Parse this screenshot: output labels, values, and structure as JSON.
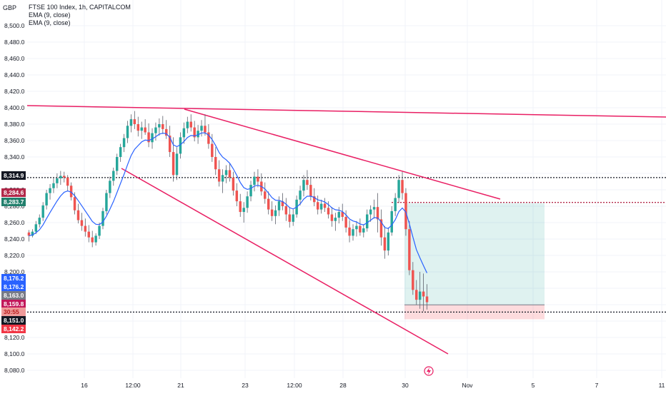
{
  "currency": "GBP",
  "legend": {
    "title": "FTSE 100 Index, 1h, CAPITALCOM",
    "studies": [
      "EMA (9, close)",
      "EMA (9, close)"
    ]
  },
  "colors": {
    "up": "#26a69a",
    "down": "#ef5350",
    "wick": "#5d606b",
    "ema": "#2962ff",
    "trendline": "#e91e63",
    "target_zone": "#26a69a",
    "stop_zone": "#f23645",
    "grid": "#f0f3fa"
  },
  "icons": {
    "flash": "lightning-icon"
  },
  "chart_data": {
    "type": "candlestick",
    "symbol": "FTSE 100 Index",
    "interval": "1h",
    "source": "CAPITALCOM",
    "y_axis": {
      "position": "left",
      "ylim": [
        8070,
        8510
      ],
      "ticks": [
        8500,
        8480,
        8460,
        8440,
        8420,
        8400,
        8380,
        8360,
        8340,
        8320,
        8300,
        8280,
        8260,
        8240,
        8220,
        8200,
        8180,
        8160,
        8140,
        8120,
        8100,
        8080
      ],
      "tick_labels": [
        "8,500.0",
        "8,480.0",
        "8,460.0",
        "8,440.0",
        "8,420.0",
        "8,400.0",
        "8,380.0",
        "8,360.0",
        "8,340.0",
        "8,320.0",
        "8,300.0",
        "8,280.0",
        "8,260.0",
        "8,240.0",
        "8,220.0",
        "8,200.0",
        "8,180.0",
        "8,160.0",
        "8,140.0",
        "8,120.0",
        "8,100.0",
        "8,080.0"
      ]
    },
    "x_axis": {
      "tick_labels": [
        "16",
        "12:00",
        "21",
        "23",
        "12:00",
        "28",
        "30",
        "Nov",
        "5",
        "7",
        "11"
      ]
    },
    "price_tags": [
      {
        "value": 8314.9,
        "label": "8,314.9",
        "color": "#131722"
      },
      {
        "value": 8284.6,
        "label": "8,284.6",
        "color": "#b2294a"
      },
      {
        "value": 8283.7,
        "label": "8,283.7",
        "color": "#22806d"
      },
      {
        "value": 8176.2,
        "label": "8,176.2",
        "color": "#2962ff"
      },
      {
        "value": 8176.2,
        "label": "8,176.2",
        "color": "#2962ff"
      },
      {
        "value": 8163.0,
        "label": "8,163.0",
        "color": "#787b86"
      },
      {
        "value": 8159.8,
        "label": "8,159.8",
        "color": "#c2185b"
      },
      {
        "value": 8155.5,
        "label": "30:55",
        "color": "#ef9a9a",
        "text_color": "#b71c1c"
      },
      {
        "value": 8151.0,
        "label": "8,151.0",
        "color": "#131722"
      },
      {
        "value": 8142.2,
        "label": "8,142.2",
        "color": "#f23645"
      }
    ],
    "horizontal_lines": [
      {
        "value": 8314.9,
        "style": "dotted",
        "color": "#131722"
      },
      {
        "value": 8151.0,
        "style": "dotted",
        "color": "#131722"
      },
      {
        "value": 8284.6,
        "style": "dotted",
        "color": "#b2294a"
      }
    ],
    "position_tool": {
      "entry": 8159.8,
      "target": 8283.7,
      "stop": 8142.2
    },
    "trendlines": [
      {
        "from": {
          "bar": 0,
          "price": 8399
        },
        "to": {
          "bar": 450,
          "price": 8387
        }
      },
      {
        "from": {
          "bar": 115,
          "price": 8398
        },
        "to": {
          "bar": 333,
          "price": 8280
        }
      },
      {
        "from": {
          "bar": 69,
          "price": 8317
        },
        "to": {
          "bar": 299,
          "price": 8104
        }
      }
    ],
    "series": [
      {
        "type": "ohlc",
        "bars": [
          [
            8248,
            8251,
            8237,
            8244
          ],
          [
            8244,
            8252,
            8242,
            8249
          ],
          [
            8249,
            8262,
            8246,
            8258
          ],
          [
            8258,
            8270,
            8254,
            8266
          ],
          [
            8266,
            8285,
            8262,
            8281
          ],
          [
            8281,
            8300,
            8276,
            8296
          ],
          [
            8296,
            8307,
            8288,
            8302
          ],
          [
            8302,
            8314,
            8296,
            8308
          ],
          [
            8308,
            8320,
            8302,
            8314
          ],
          [
            8314,
            8323,
            8306,
            8317
          ],
          [
            8317,
            8322,
            8309,
            8315
          ],
          [
            8315,
            8318,
            8298,
            8305
          ],
          [
            8305,
            8309,
            8287,
            8291
          ],
          [
            8291,
            8297,
            8270,
            8275
          ],
          [
            8275,
            8283,
            8259,
            8263
          ],
          [
            8263,
            8272,
            8250,
            8256
          ],
          [
            8256,
            8265,
            8243,
            8249
          ],
          [
            8249,
            8257,
            8236,
            8242
          ],
          [
            8242,
            8250,
            8230,
            8236
          ],
          [
            8236,
            8247,
            8232,
            8244
          ],
          [
            8244,
            8260,
            8240,
            8256
          ],
          [
            8256,
            8278,
            8252,
            8274
          ],
          [
            8274,
            8300,
            8270,
            8296
          ],
          [
            8296,
            8316,
            8290,
            8311
          ],
          [
            8311,
            8327,
            8305,
            8323
          ],
          [
            8323,
            8344,
            8318,
            8340
          ],
          [
            8340,
            8356,
            8334,
            8352
          ],
          [
            8352,
            8368,
            8346,
            8363
          ],
          [
            8363,
            8384,
            8357,
            8378
          ],
          [
            8378,
            8392,
            8370,
            8386
          ],
          [
            8386,
            8396,
            8374,
            8380
          ],
          [
            8380,
            8389,
            8365,
            8372
          ],
          [
            8372,
            8383,
            8362,
            8376
          ],
          [
            8376,
            8386,
            8367,
            8370
          ],
          [
            8370,
            8381,
            8352,
            8358
          ],
          [
            8358,
            8375,
            8350,
            8369
          ],
          [
            8369,
            8382,
            8360,
            8376
          ],
          [
            8376,
            8387,
            8366,
            8380
          ],
          [
            8380,
            8390,
            8368,
            8374
          ],
          [
            8374,
            8385,
            8362,
            8366
          ],
          [
            8366,
            8378,
            8340,
            8346
          ],
          [
            8346,
            8364,
            8310,
            8318
          ],
          [
            8318,
            8352,
            8312,
            8344
          ],
          [
            8344,
            8370,
            8338,
            8364
          ],
          [
            8364,
            8382,
            8356,
            8375
          ],
          [
            8375,
            8389,
            8369,
            8383
          ],
          [
            8383,
            8392,
            8371,
            8376
          ],
          [
            8376,
            8384,
            8359,
            8364
          ],
          [
            8364,
            8379,
            8356,
            8372
          ],
          [
            8372,
            8385,
            8365,
            8378
          ],
          [
            8378,
            8392,
            8366,
            8370
          ],
          [
            8370,
            8380,
            8350,
            8356
          ],
          [
            8356,
            8368,
            8334,
            8340
          ],
          [
            8340,
            8352,
            8318,
            8325
          ],
          [
            8325,
            8336,
            8304,
            8310
          ],
          [
            8310,
            8325,
            8296,
            8318
          ],
          [
            8318,
            8330,
            8308,
            8324
          ],
          [
            8324,
            8332,
            8310,
            8315
          ],
          [
            8315,
            8322,
            8293,
            8299
          ],
          [
            8299,
            8308,
            8280,
            8286
          ],
          [
            8286,
            8295,
            8267,
            8273
          ],
          [
            8273,
            8285,
            8260,
            8278
          ],
          [
            8278,
            8298,
            8272,
            8292
          ],
          [
            8292,
            8311,
            8286,
            8306
          ],
          [
            8306,
            8322,
            8298,
            8316
          ],
          [
            8316,
            8325,
            8303,
            8310
          ],
          [
            8310,
            8320,
            8293,
            8298
          ],
          [
            8298,
            8309,
            8283,
            8289
          ],
          [
            8289,
            8298,
            8270,
            8276
          ],
          [
            8276,
            8286,
            8262,
            8268
          ],
          [
            8268,
            8281,
            8258,
            8275
          ],
          [
            8275,
            8292,
            8268,
            8286
          ],
          [
            8286,
            8296,
            8275,
            8280
          ],
          [
            8280,
            8290,
            8262,
            8270
          ],
          [
            8270,
            8279,
            8254,
            8261
          ],
          [
            8261,
            8276,
            8256,
            8270
          ],
          [
            8270,
            8293,
            8266,
            8288
          ],
          [
            8288,
            8305,
            8281,
            8299
          ],
          [
            8299,
            8318,
            8292,
            8312
          ],
          [
            8312,
            8324,
            8300,
            8306
          ],
          [
            8306,
            8314,
            8287,
            8292
          ],
          [
            8292,
            8302,
            8280,
            8285
          ],
          [
            8285,
            8293,
            8270,
            8276
          ],
          [
            8276,
            8288,
            8271,
            8283
          ],
          [
            8283,
            8290,
            8273,
            8278
          ],
          [
            8278,
            8286,
            8265,
            8270
          ],
          [
            8270,
            8279,
            8255,
            8262
          ],
          [
            8262,
            8272,
            8250,
            8266
          ],
          [
            8266,
            8279,
            8259,
            8273
          ],
          [
            8273,
            8283,
            8262,
            8267
          ],
          [
            8267,
            8275,
            8248,
            8254
          ],
          [
            8254,
            8263,
            8236,
            8244
          ],
          [
            8244,
            8258,
            8238,
            8252
          ],
          [
            8252,
            8262,
            8243,
            8256
          ],
          [
            8256,
            8265,
            8244,
            8248
          ],
          [
            8248,
            8258,
            8242,
            8253
          ],
          [
            8253,
            8276,
            8249,
            8270
          ],
          [
            8270,
            8281,
            8261,
            8276
          ],
          [
            8276,
            8288,
            8265,
            8279
          ],
          [
            8279,
            8296,
            8248,
            8264
          ],
          [
            8264,
            8276,
            8232,
            8242
          ],
          [
            8242,
            8256,
            8216,
            8226
          ],
          [
            8226,
            8254,
            8220,
            8248
          ],
          [
            8248,
            8280,
            8244,
            8274
          ],
          [
            8274,
            8296,
            8268,
            8290
          ],
          [
            8290,
            8318,
            8284,
            8312
          ],
          [
            8312,
            8322,
            8288,
            8296
          ],
          [
            8296,
            8302,
            8244,
            8252
          ],
          [
            8252,
            8262,
            8196,
            8202
          ],
          [
            8202,
            8212,
            8172,
            8178
          ],
          [
            8178,
            8190,
            8160,
            8166
          ],
          [
            8166,
            8200,
            8155,
            8176
          ],
          [
            8176,
            8198,
            8152,
            8170
          ],
          [
            8170,
            8185,
            8154,
            8163
          ]
        ]
      },
      {
        "name": "EMA (9, close)",
        "type": "ema",
        "period": 9
      },
      {
        "name": "EMA (9, close)",
        "type": "ema",
        "period": 9
      }
    ]
  }
}
